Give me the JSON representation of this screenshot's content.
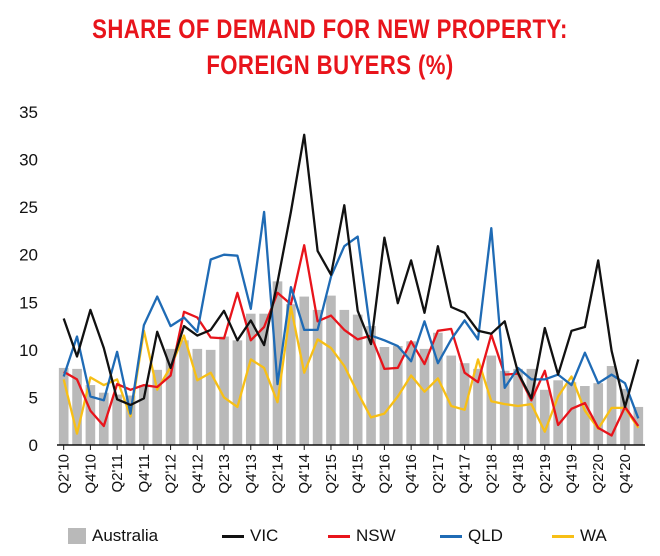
{
  "chart_data": {
    "type": "bar+line",
    "title": "SHARE OF DEMAND FOR NEW PROPERTY:",
    "subtitle": "FOREIGN BUYERS (%)",
    "xlabel": "",
    "ylabel": "",
    "ylim": [
      0,
      35
    ],
    "yticks": [
      "0",
      "5",
      "10",
      "15",
      "20",
      "25",
      "30",
      "35"
    ],
    "categories": [
      "Q2'10",
      "Q3'10",
      "Q4'10",
      "Q1'11",
      "Q2'11",
      "Q3'11",
      "Q4'11",
      "Q1'12",
      "Q2'12",
      "Q3'12",
      "Q4'12",
      "Q1'13",
      "Q2'13",
      "Q3'13",
      "Q4'13",
      "Q1'14",
      "Q2'14",
      "Q3'14",
      "Q4'14",
      "Q1'15",
      "Q2'15",
      "Q3'15",
      "Q4'15",
      "Q1'16",
      "Q2'16",
      "Q3'16",
      "Q4'16",
      "Q1'17",
      "Q2'17",
      "Q3'17",
      "Q4'17",
      "Q1'18",
      "Q2'18",
      "Q3'18",
      "Q4'18",
      "Q1'19",
      "Q2'19",
      "Q3'19",
      "Q4'19",
      "Q1'20",
      "Q2'20",
      "Q3'20",
      "Q4'20",
      "Q1'21"
    ],
    "xtick_labels": [
      "Q2'10",
      "Q4'10",
      "Q2'11",
      "Q4'11",
      "Q2'12",
      "Q4'12",
      "Q2'13",
      "Q4'13",
      "Q2'14",
      "Q4'14",
      "Q2'15",
      "Q4'15",
      "Q2'16",
      "Q4'16",
      "Q2'17",
      "Q4'17",
      "Q2'18",
      "Q4'18",
      "Q2'19",
      "Q4'19",
      "Q2'20",
      "Q4'20"
    ],
    "series": [
      {
        "name": "Australia",
        "kind": "bar",
        "color": "#b9b9b9",
        "values": [
          8.1,
          8.0,
          6.3,
          5.5,
          5.3,
          5.2,
          6.3,
          7.9,
          10.1,
          11.0,
          10.1,
          10.0,
          11.4,
          11.0,
          13.8,
          13.8,
          17.2,
          14.8,
          15.6,
          14.2,
          15.7,
          14.2,
          13.7,
          12.5,
          10.3,
          10.4,
          10.9,
          10.1,
          11.8,
          9.4,
          8.6,
          8.0,
          9.4,
          7.8,
          8.0,
          8.0,
          5.8,
          6.8,
          6.6,
          6.2,
          6.5,
          8.3,
          5.9,
          4.0
        ]
      },
      {
        "name": "VIC",
        "kind": "line",
        "color": "#111111",
        "values": [
          13.3,
          9.3,
          14.2,
          10.2,
          4.8,
          4.2,
          4.9,
          11.9,
          8.1,
          12.5,
          11.5,
          12.1,
          14.1,
          11.0,
          13.1,
          10.5,
          17.1,
          24.5,
          32.6,
          20.4,
          17.9,
          25.2,
          14.1,
          10.6,
          21.8,
          14.9,
          19.4,
          13.9,
          20.9,
          14.5,
          13.9,
          12.0,
          11.7,
          13.0,
          7.6,
          4.9,
          12.3,
          7.4,
          12.0,
          12.4,
          19.4,
          9.9,
          4.0,
          9.0
        ]
      },
      {
        "name": "NSW",
        "kind": "line",
        "color": "#e8141b",
        "values": [
          7.7,
          6.9,
          3.6,
          2.0,
          6.4,
          5.8,
          6.3,
          6.1,
          7.3,
          14.0,
          13.4,
          11.3,
          11.2,
          16.0,
          11.0,
          12.4,
          16.0,
          14.8,
          21.0,
          13.0,
          13.6,
          12.1,
          11.1,
          11.5,
          8.0,
          8.1,
          10.9,
          8.5,
          12.0,
          12.2,
          7.6,
          6.6,
          11.6,
          7.4,
          7.5,
          4.7,
          7.8,
          2.1,
          3.8,
          4.4,
          1.8,
          1.0,
          4.0,
          2.0
        ]
      },
      {
        "name": "QLD",
        "kind": "line",
        "color": "#1f6bb5",
        "values": [
          7.2,
          11.4,
          5.1,
          4.7,
          9.8,
          3.3,
          12.6,
          15.6,
          12.5,
          13.4,
          11.9,
          19.5,
          20.0,
          19.9,
          14.3,
          24.5,
          6.4,
          16.6,
          12.1,
          12.1,
          17.7,
          20.9,
          21.9,
          11.5,
          11.0,
          10.4,
          8.8,
          13.0,
          8.6,
          11.1,
          13.1,
          11.1,
          22.8,
          6.0,
          8.1,
          6.9,
          6.9,
          7.4,
          6.3,
          9.7,
          6.5,
          7.4,
          6.5,
          2.8
        ]
      },
      {
        "name": "WA",
        "kind": "line",
        "color": "#f7bf16",
        "values": [
          6.9,
          1.2,
          7.1,
          6.3,
          6.9,
          3.0,
          12.0,
          5.8,
          8.2,
          11.5,
          6.8,
          7.6,
          5.0,
          4.0,
          9.0,
          8.1,
          4.5,
          14.5,
          7.6,
          11.1,
          10.2,
          8.3,
          5.5,
          2.9,
          3.3,
          5.1,
          7.3,
          5.6,
          7.0,
          4.1,
          3.7,
          9.0,
          4.6,
          4.3,
          4.1,
          4.3,
          1.4,
          5.1,
          7.2,
          3.6,
          1.7,
          3.9,
          3.9,
          1.8
        ]
      }
    ],
    "legend": [
      "Australia",
      "VIC",
      "NSW",
      "QLD",
      "WA"
    ],
    "legend_position": "bottom",
    "grid": false
  }
}
